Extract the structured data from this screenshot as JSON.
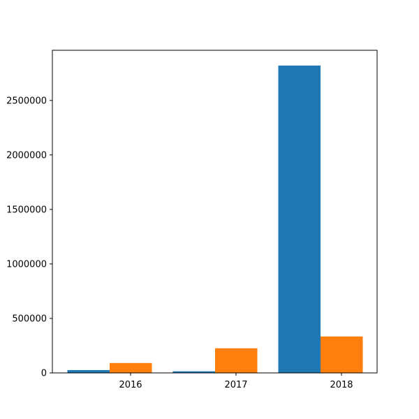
{
  "chart_data": {
    "type": "bar",
    "categories": [
      "2016",
      "2017",
      "2018"
    ],
    "series": [
      {
        "values": [
          26000,
          15000,
          2820000
        ],
        "color": "#1f77b4"
      },
      {
        "values": [
          91000,
          226000,
          334000
        ],
        "color": "#ff7f0e"
      }
    ],
    "yticks": [
      0,
      500000,
      1000000,
      1500000,
      2000000,
      2500000
    ],
    "ytick_labels": [
      "0",
      "500000",
      "1000000",
      "1500000",
      "2000000",
      "2500000"
    ],
    "ylim": [
      0,
      2960000
    ],
    "grid": false,
    "legend": "none"
  }
}
